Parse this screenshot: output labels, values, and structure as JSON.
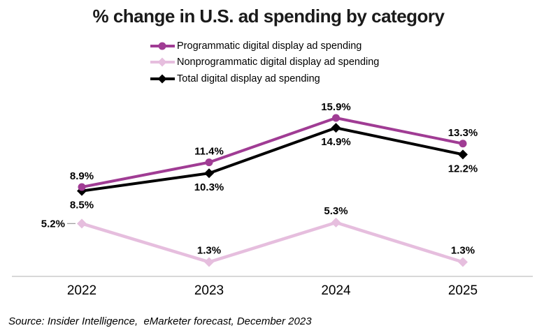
{
  "title": "% change in U.S. ad spending by category",
  "source": "Source: Insider Intelligence,  eMarketer forecast, December 2023",
  "colors": {
    "programmatic": "#A03C94",
    "nonprogrammatic": "#E6BEDE",
    "total": "#000000",
    "axis_line": "#cccccc",
    "leader_line": "#999999",
    "title_text": "#1a1a1a"
  },
  "chart_data": {
    "type": "line",
    "title": "% change in U.S. ad spending by category",
    "categories": [
      "2022",
      "2023",
      "2024",
      "2025"
    ],
    "series": [
      {
        "name": "Programmatic digital display ad spending",
        "values": [
          8.9,
          11.4,
          15.9,
          13.3
        ],
        "labels": [
          "8.9%",
          "11.4%",
          "15.9%",
          "13.3%"
        ],
        "color": "#A03C94",
        "marker": "circle"
      },
      {
        "name": "Nonprogrammatic digital display ad spending",
        "values": [
          5.2,
          1.3,
          5.3,
          1.3
        ],
        "labels": [
          "5.2%",
          "1.3%",
          "5.3%",
          "1.3%"
        ],
        "color": "#E6BEDE",
        "marker": "diamond"
      },
      {
        "name": "Total digital display ad spending",
        "values": [
          8.5,
          10.3,
          14.9,
          12.2
        ],
        "labels": [
          "8.5%",
          "10.3%",
          "14.9%",
          "12.2%"
        ],
        "color": "#000000",
        "marker": "diamond"
      }
    ],
    "xlabel": "",
    "ylabel": "",
    "grid": false,
    "legend_position": "top-left-of-plot",
    "y_axis_hidden": true
  }
}
